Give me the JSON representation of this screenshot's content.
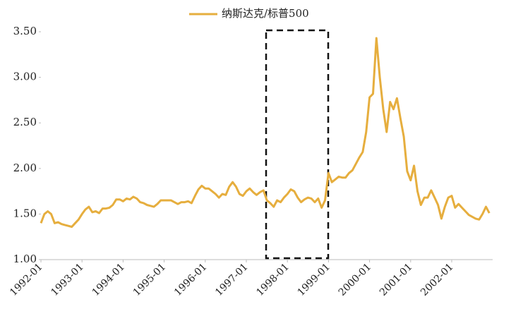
{
  "chart_data": {
    "type": "line",
    "categories": [
      "1992-01",
      null,
      null,
      null,
      null,
      null,
      null,
      null,
      null,
      null,
      null,
      null,
      "1993-01",
      null,
      null,
      null,
      null,
      null,
      null,
      null,
      null,
      null,
      null,
      null,
      "1994-01",
      null,
      null,
      null,
      null,
      null,
      null,
      null,
      null,
      null,
      null,
      null,
      "1995-01",
      null,
      null,
      null,
      null,
      null,
      null,
      null,
      null,
      null,
      null,
      null,
      "1996-01",
      null,
      null,
      null,
      null,
      null,
      null,
      null,
      null,
      null,
      null,
      null,
      "1997-01",
      null,
      null,
      null,
      null,
      null,
      null,
      null,
      null,
      null,
      null,
      null,
      "1998-01",
      null,
      null,
      null,
      null,
      null,
      null,
      null,
      null,
      null,
      null,
      null,
      "1999-01",
      null,
      null,
      null,
      null,
      null,
      null,
      null,
      null,
      null,
      null,
      null,
      "2000-01",
      null,
      null,
      null,
      null,
      null,
      null,
      null,
      null,
      null,
      null,
      null,
      "2001-01",
      null,
      null,
      null,
      null,
      null,
      null,
      null,
      null,
      null,
      null,
      null,
      "2002-01",
      null,
      null,
      null,
      null,
      null,
      null,
      null,
      null,
      null,
      null,
      null
    ],
    "series": [
      {
        "name": "纳斯达克/标普500",
        "color": "#E6AE3E",
        "values": [
          1.4,
          1.5,
          1.53,
          1.5,
          1.4,
          1.41,
          1.39,
          1.38,
          1.37,
          1.36,
          1.4,
          1.44,
          1.5,
          1.55,
          1.58,
          1.52,
          1.53,
          1.51,
          1.56,
          1.56,
          1.57,
          1.6,
          1.66,
          1.66,
          1.64,
          1.67,
          1.66,
          1.69,
          1.67,
          1.63,
          1.62,
          1.6,
          1.59,
          1.58,
          1.61,
          1.65,
          1.65,
          1.65,
          1.65,
          1.63,
          1.61,
          1.63,
          1.63,
          1.64,
          1.62,
          1.7,
          1.77,
          1.81,
          1.78,
          1.78,
          1.75,
          1.72,
          1.68,
          1.72,
          1.71,
          1.8,
          1.85,
          1.8,
          1.72,
          1.7,
          1.75,
          1.78,
          1.74,
          1.71,
          1.74,
          1.76,
          1.65,
          1.62,
          1.58,
          1.65,
          1.63,
          1.68,
          1.72,
          1.77,
          1.75,
          1.68,
          1.63,
          1.66,
          1.68,
          1.67,
          1.63,
          1.67,
          1.57,
          1.65,
          1.95,
          1.85,
          1.88,
          1.91,
          1.9,
          1.9,
          1.95,
          1.98,
          2.05,
          2.12,
          2.18,
          2.4,
          2.78,
          2.82,
          3.43,
          3.0,
          2.65,
          2.4,
          2.73,
          2.65,
          2.77,
          2.55,
          2.35,
          1.97,
          1.87,
          2.03,
          1.75,
          1.6,
          1.68,
          1.68,
          1.76,
          1.68,
          1.6,
          1.45,
          1.58,
          1.68,
          1.7,
          1.57,
          1.61,
          1.57,
          1.53,
          1.49,
          1.47,
          1.45,
          1.44,
          1.5,
          1.58,
          1.51
        ]
      }
    ],
    "ylim": [
      1.0,
      3.5
    ],
    "yticks": [
      {
        "value": 1.0,
        "label": "1.00"
      },
      {
        "value": 1.5,
        "label": "1.50"
      },
      {
        "value": 2.0,
        "label": "2.00"
      },
      {
        "value": 2.5,
        "label": "2.50"
      },
      {
        "value": 3.0,
        "label": "3.00"
      },
      {
        "value": 3.5,
        "label": "3.50"
      }
    ],
    "grid": false
  }
}
